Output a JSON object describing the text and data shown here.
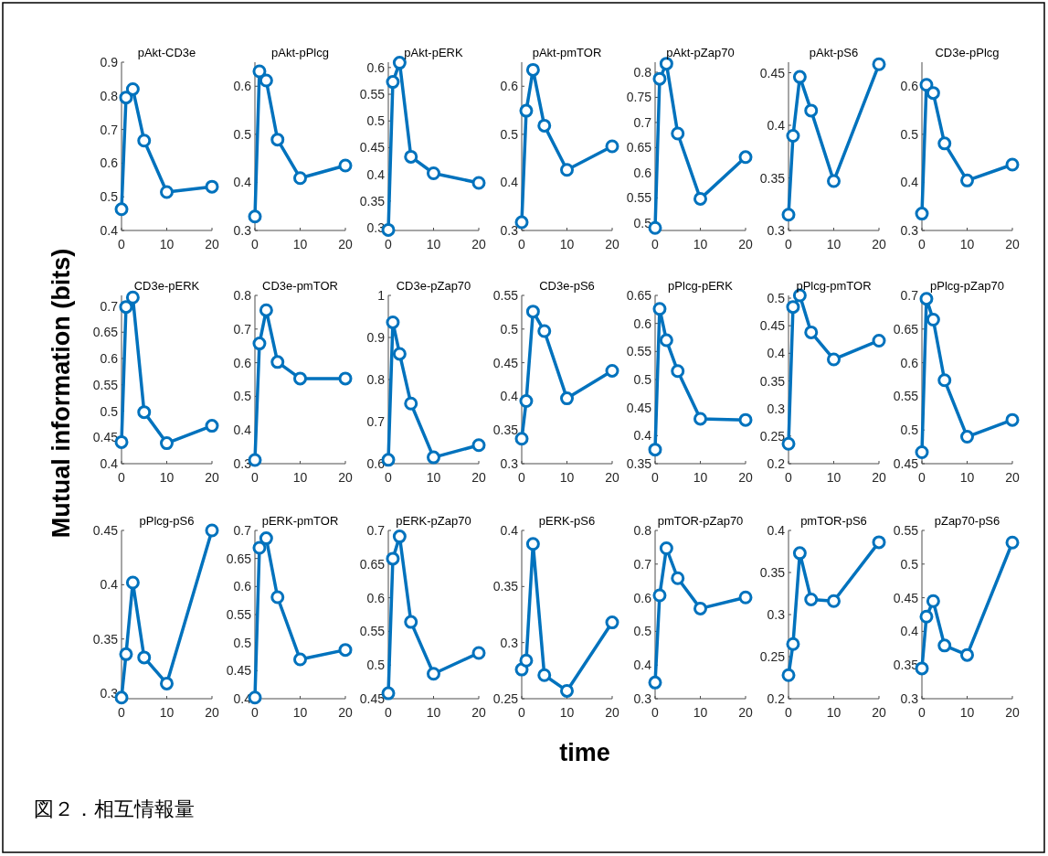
{
  "chart_data": [
    {
      "type": "line",
      "title": "pAkt-CD3e",
      "x": [
        0,
        1,
        2.5,
        5,
        10,
        20
      ],
      "values": [
        0.463,
        0.795,
        0.82,
        0.667,
        0.514,
        0.53
      ],
      "color": "#0072bd",
      "marker": "circle",
      "xlim": [
        0,
        20
      ],
      "xticks": [
        0,
        10,
        20
      ],
      "ylim": [
        0.4,
        0.9
      ],
      "yticks": [
        0.4,
        0.5,
        0.6,
        0.7,
        0.8,
        0.9
      ]
    },
    {
      "type": "line",
      "title": "pAkt-pPlcg",
      "x": [
        0,
        1,
        2.5,
        5,
        10,
        20
      ],
      "values": [
        0.329,
        0.631,
        0.612,
        0.489,
        0.409,
        0.435
      ],
      "color": "#0072bd",
      "marker": "circle",
      "xlim": [
        0,
        20
      ],
      "xticks": [
        0,
        10,
        20
      ],
      "ylim": [
        0.3,
        0.65
      ],
      "yticks": [
        0.3,
        0.4,
        0.5,
        0.6
      ]
    },
    {
      "type": "line",
      "title": "pAkt-pERK",
      "x": [
        0,
        1,
        2.5,
        5,
        10,
        20
      ],
      "values": [
        0.296,
        0.573,
        0.609,
        0.433,
        0.402,
        0.384
      ],
      "color": "#0072bd",
      "marker": "circle",
      "xlim": [
        0,
        20
      ],
      "xticks": [
        0,
        10,
        20
      ],
      "ylim": [
        0.295,
        0.61
      ],
      "yticks": [
        0.3,
        0.35,
        0.4,
        0.45,
        0.5,
        0.55,
        0.6
      ]
    },
    {
      "type": "line",
      "title": "pAkt-pmTOR",
      "x": [
        0,
        1,
        2.5,
        5,
        10,
        20
      ],
      "values": [
        0.317,
        0.549,
        0.634,
        0.518,
        0.426,
        0.475
      ],
      "color": "#0072bd",
      "marker": "circle",
      "xlim": [
        0,
        20
      ],
      "xticks": [
        0,
        10,
        20
      ],
      "ylim": [
        0.3,
        0.65
      ],
      "yticks": [
        0.3,
        0.4,
        0.5,
        0.6
      ]
    },
    {
      "type": "line",
      "title": "pAkt-pZap70",
      "x": [
        0,
        1,
        2.5,
        5,
        10,
        20
      ],
      "values": [
        0.49,
        0.787,
        0.817,
        0.678,
        0.548,
        0.631
      ],
      "color": "#0072bd",
      "marker": "circle",
      "xlim": [
        0,
        20
      ],
      "xticks": [
        0,
        10,
        20
      ],
      "ylim": [
        0.485,
        0.82
      ],
      "yticks": [
        0.5,
        0.55,
        0.6,
        0.65,
        0.7,
        0.75,
        0.8
      ]
    },
    {
      "type": "line",
      "title": "pAkt-pS6",
      "x": [
        0,
        1,
        2.5,
        5,
        10,
        20
      ],
      "values": [
        0.315,
        0.39,
        0.446,
        0.414,
        0.347,
        0.458
      ],
      "color": "#0072bd",
      "marker": "circle",
      "xlim": [
        0,
        20
      ],
      "xticks": [
        0,
        10,
        20
      ],
      "ylim": [
        0.3,
        0.46
      ],
      "yticks": [
        0.3,
        0.35,
        0.4,
        0.45
      ]
    },
    {
      "type": "line",
      "title": "CD3e-pPlcg",
      "x": [
        0,
        1,
        2.5,
        5,
        10,
        20
      ],
      "values": [
        0.335,
        0.603,
        0.586,
        0.481,
        0.404,
        0.437
      ],
      "color": "#0072bd",
      "marker": "circle",
      "xlim": [
        0,
        20
      ],
      "xticks": [
        0,
        10,
        20
      ],
      "ylim": [
        0.3,
        0.65
      ],
      "yticks": [
        0.3,
        0.4,
        0.5,
        0.6
      ]
    },
    {
      "type": "line",
      "title": "CD3e-pERK",
      "ylabel": "Mutual information (bits)",
      "x": [
        0,
        1,
        2.5,
        5,
        10,
        20
      ],
      "values": [
        0.441,
        0.698,
        0.716,
        0.498,
        0.439,
        0.472
      ],
      "color": "#0072bd",
      "marker": "circle",
      "xlim": [
        0,
        20
      ],
      "xticks": [
        0,
        10,
        20
      ],
      "ylim": [
        0.4,
        0.72
      ],
      "yticks": [
        0.4,
        0.45,
        0.5,
        0.55,
        0.6,
        0.65,
        0.7
      ]
    },
    {
      "type": "line",
      "title": "CD3e-pmTOR",
      "x": [
        0,
        1,
        2.5,
        5,
        10,
        20
      ],
      "values": [
        0.311,
        0.657,
        0.756,
        0.602,
        0.553,
        0.553
      ],
      "color": "#0072bd",
      "marker": "circle",
      "xlim": [
        0,
        20
      ],
      "xticks": [
        0,
        10,
        20
      ],
      "ylim": [
        0.3,
        0.8
      ],
      "yticks": [
        0.3,
        0.4,
        0.5,
        0.6,
        0.7,
        0.8
      ]
    },
    {
      "type": "line",
      "title": "CD3e-pZap70",
      "x": [
        0,
        1,
        2.5,
        5,
        10,
        20
      ],
      "values": [
        0.609,
        0.936,
        0.861,
        0.743,
        0.615,
        0.644
      ],
      "color": "#0072bd",
      "marker": "circle",
      "xlim": [
        0,
        20
      ],
      "xticks": [
        0,
        10,
        20
      ],
      "ylim": [
        0.6,
        1
      ],
      "yticks": [
        0.6,
        0.7,
        0.8,
        0.9,
        1
      ]
    },
    {
      "type": "line",
      "title": "CD3e-pS6",
      "x": [
        0,
        1,
        2.5,
        5,
        10,
        20
      ],
      "values": [
        0.337,
        0.393,
        0.526,
        0.497,
        0.397,
        0.438
      ],
      "color": "#0072bd",
      "marker": "circle",
      "xlim": [
        0,
        20
      ],
      "xticks": [
        0,
        10,
        20
      ],
      "ylim": [
        0.3,
        0.55
      ],
      "yticks": [
        0.3,
        0.35,
        0.4,
        0.45,
        0.5,
        0.55
      ]
    },
    {
      "type": "line",
      "title": "pPlcg-pERK",
      "x": [
        0,
        1,
        2.5,
        5,
        10,
        20
      ],
      "values": [
        0.375,
        0.626,
        0.57,
        0.515,
        0.43,
        0.428
      ],
      "color": "#0072bd",
      "marker": "circle",
      "xlim": [
        0,
        20
      ],
      "xticks": [
        0,
        10,
        20
      ],
      "ylim": [
        0.35,
        0.65
      ],
      "yticks": [
        0.35,
        0.4,
        0.45,
        0.5,
        0.55,
        0.6,
        0.65
      ]
    },
    {
      "type": "line",
      "title": "pPlcg-pmTOR",
      "x": [
        0,
        1,
        2.5,
        5,
        10,
        20
      ],
      "values": [
        0.236,
        0.484,
        0.505,
        0.438,
        0.389,
        0.423
      ],
      "color": "#0072bd",
      "marker": "circle",
      "xlim": [
        0,
        20
      ],
      "xticks": [
        0,
        10,
        20
      ],
      "ylim": [
        0.2,
        0.505
      ],
      "yticks": [
        0.2,
        0.25,
        0.3,
        0.35,
        0.4,
        0.45,
        0.5
      ]
    },
    {
      "type": "line",
      "title": "pPlcg-pZap70",
      "x": [
        0,
        1,
        2.5,
        5,
        10,
        20
      ],
      "values": [
        0.467,
        0.695,
        0.664,
        0.574,
        0.49,
        0.515
      ],
      "color": "#0072bd",
      "marker": "circle",
      "xlim": [
        0,
        20
      ],
      "xticks": [
        0,
        10,
        20
      ],
      "ylim": [
        0.45,
        0.7
      ],
      "yticks": [
        0.45,
        0.5,
        0.55,
        0.6,
        0.65,
        0.7
      ]
    },
    {
      "type": "line",
      "title": "pPlcg-pS6",
      "x": [
        0,
        1,
        2.5,
        5,
        10,
        20
      ],
      "values": [
        0.296,
        0.336,
        0.402,
        0.333,
        0.309,
        0.45
      ],
      "color": "#0072bd",
      "marker": "circle",
      "xlim": [
        0,
        20
      ],
      "xticks": [
        0,
        10,
        20
      ],
      "ylim": [
        0.295,
        0.45
      ],
      "yticks": [
        0.3,
        0.35,
        0.4,
        0.45
      ]
    },
    {
      "type": "line",
      "title": "pERK-pmTOR",
      "x": [
        0,
        1,
        2.5,
        5,
        10,
        20
      ],
      "values": [
        0.402,
        0.669,
        0.686,
        0.581,
        0.47,
        0.487
      ],
      "color": "#0072bd",
      "marker": "circle",
      "xlim": [
        0,
        20
      ],
      "xticks": [
        0,
        10,
        20
      ],
      "ylim": [
        0.4,
        0.7
      ],
      "yticks": [
        0.4,
        0.45,
        0.5,
        0.55,
        0.6,
        0.65,
        0.7
      ]
    },
    {
      "type": "line",
      "title": "pERK-pZap70",
      "x": [
        0,
        1,
        2.5,
        5,
        10,
        20
      ],
      "values": [
        0.458,
        0.658,
        0.691,
        0.564,
        0.487,
        0.518
      ],
      "color": "#0072bd",
      "marker": "circle",
      "xlim": [
        0,
        20
      ],
      "xticks": [
        0,
        10,
        20
      ],
      "ylim": [
        0.45,
        0.7
      ],
      "yticks": [
        0.45,
        0.5,
        0.55,
        0.6,
        0.65,
        0.7
      ]
    },
    {
      "type": "line",
      "title": "pERK-pS6",
      "xlabel": "time",
      "x": [
        0,
        1,
        2.5,
        5,
        10,
        20
      ],
      "values": [
        0.276,
        0.284,
        0.388,
        0.271,
        0.257,
        0.318
      ],
      "color": "#0072bd",
      "marker": "circle",
      "xlim": [
        0,
        20
      ],
      "xticks": [
        0,
        10,
        20
      ],
      "ylim": [
        0.25,
        0.4
      ],
      "yticks": [
        0.25,
        0.3,
        0.35,
        0.4
      ]
    },
    {
      "type": "line",
      "title": "pmTOR-pZap70",
      "x": [
        0,
        1,
        2.5,
        5,
        10,
        20
      ],
      "values": [
        0.348,
        0.607,
        0.747,
        0.658,
        0.568,
        0.601
      ],
      "color": "#0072bd",
      "marker": "circle",
      "xlim": [
        0,
        20
      ],
      "xticks": [
        0,
        10,
        20
      ],
      "ylim": [
        0.3,
        0.8
      ],
      "yticks": [
        0.3,
        0.4,
        0.5,
        0.6,
        0.7,
        0.8
      ]
    },
    {
      "type": "line",
      "title": "pmTOR-pS6",
      "x": [
        0,
        1,
        2.5,
        5,
        10,
        20
      ],
      "values": [
        0.228,
        0.265,
        0.373,
        0.318,
        0.316,
        0.386
      ],
      "color": "#0072bd",
      "marker": "circle",
      "xlim": [
        0,
        20
      ],
      "xticks": [
        0,
        10,
        20
      ],
      "ylim": [
        0.2,
        0.4
      ],
      "yticks": [
        0.2,
        0.25,
        0.3,
        0.35,
        0.4
      ]
    },
    {
      "type": "line",
      "title": "pZap70-pS6",
      "annotations": [
        "図２．相互情報量"
      ],
      "x": [
        0,
        1,
        2.5,
        5,
        10,
        20
      ],
      "values": [
        0.345,
        0.422,
        0.445,
        0.379,
        0.365,
        0.532
      ],
      "color": "#0072bd",
      "marker": "circle",
      "xlim": [
        0,
        20
      ],
      "xticks": [
        0,
        10,
        20
      ],
      "ylim": [
        0.3,
        0.55
      ],
      "yticks": [
        0.3,
        0.35,
        0.4,
        0.45,
        0.5,
        0.55
      ]
    }
  ]
}
